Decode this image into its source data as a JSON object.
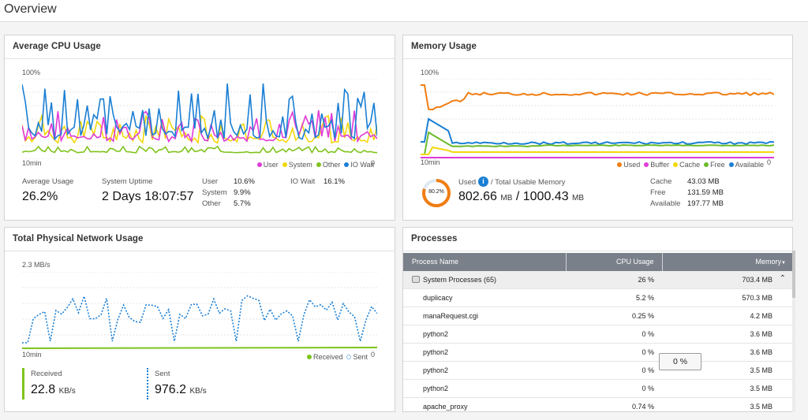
{
  "page": {
    "title": "Overview"
  },
  "cpu": {
    "title": "Average CPU Usage",
    "y_max_label": "100%",
    "x_label": "10min",
    "x_end_label": "0",
    "legend": [
      {
        "label": "User",
        "color": "#e03ad8"
      },
      {
        "label": "System",
        "color": "#f2d80c"
      },
      {
        "label": "Other",
        "color": "#7fc31c"
      },
      {
        "label": "IO Wait",
        "color": "#1a7fd4"
      }
    ],
    "avg_label": "Average Usage",
    "avg_value": "26.2%",
    "uptime_label": "System Uptime",
    "uptime_value": "2 Days 18:07:57",
    "user_label": "User",
    "user_value": "10.6%",
    "system_label": "System",
    "system_value": "9.9%",
    "other_label": "Other",
    "other_value": "5.7%",
    "iowait_label": "IO Wait",
    "iowait_value": "16.1%"
  },
  "memory": {
    "title": "Memory Usage",
    "y_max_label": "100%",
    "x_label": "10min",
    "x_end_label": "0",
    "legend": [
      {
        "label": "Used",
        "color": "#f07d12"
      },
      {
        "label": "Buffer",
        "color": "#e03ad8"
      },
      {
        "label": "Cache",
        "color": "#f2d80c"
      },
      {
        "label": "Free",
        "color": "#6cbc2c"
      },
      {
        "label": "Available",
        "color": "#1a7fd4"
      }
    ],
    "gauge_percent": "80.2%",
    "gauge_fraction": 0.802,
    "used_label": "Used",
    "info_icon": "info-icon",
    "total_label": "/ Total Usable Memory",
    "used_value": "802.66",
    "used_unit": "MB",
    "separator": "/",
    "total_value": "1000.43",
    "total_unit": "MB",
    "cache_label": "Cache",
    "cache_value": "43.03 MB",
    "free_label": "Free",
    "free_value": "131.59 MB",
    "available_label": "Available",
    "available_value": "197.77 MB"
  },
  "network": {
    "title": "Total Physical Network Usage",
    "y_max_label": "2.3 MB/s",
    "x_label": "10min",
    "x_end_label": "0",
    "legend": [
      {
        "label": "Received",
        "color": "#7fc31c"
      },
      {
        "label": "Sent",
        "color": "#1a7fd4"
      }
    ],
    "received_label": "Received",
    "received_value": "22.8",
    "received_unit": "KB/s",
    "sent_label": "Sent",
    "sent_value": "976.2",
    "sent_unit": "KB/s"
  },
  "processes": {
    "title": "Processes",
    "col_name": "Process Name",
    "col_cpu": "CPU Usage",
    "col_mem": "Memory",
    "sort_icon": "sort-down-icon",
    "group": {
      "name": "System Processes (65)",
      "cpu": "26 %",
      "mem": "703.4 MB"
    },
    "rows": [
      {
        "name": "duplicacy",
        "cpu": "5.2 %",
        "mem": "570.3 MB"
      },
      {
        "name": "manaRequest.cgi",
        "cpu": "0.25 %",
        "mem": "4.2 MB"
      },
      {
        "name": "python2",
        "cpu": "0 %",
        "mem": "3.6 MB"
      },
      {
        "name": "python2",
        "cpu": "0 %",
        "mem": "3.6 MB"
      },
      {
        "name": "python2",
        "cpu": "0 %",
        "mem": "3.5 MB"
      },
      {
        "name": "python2",
        "cpu": "0 %",
        "mem": "3.5 MB"
      },
      {
        "name": "apache_proxy",
        "cpu": "0.74 %",
        "mem": "3.5 MB"
      }
    ],
    "tooltip": "0 %"
  }
}
